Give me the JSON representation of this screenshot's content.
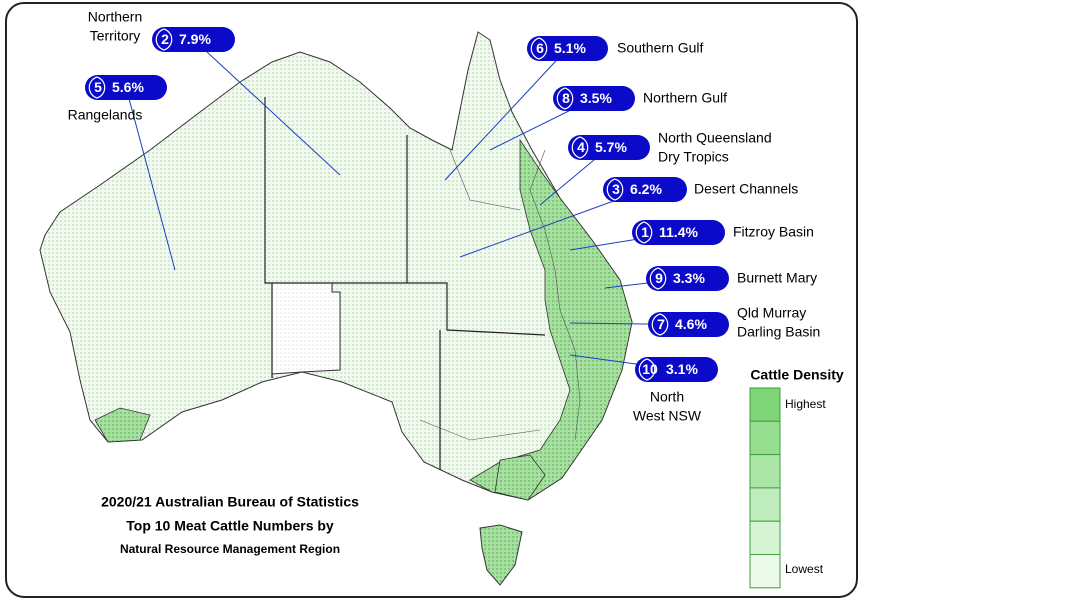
{
  "map": {
    "title_lines": [
      "2020/21 Australian Bureau of Statistics",
      "Top 10 Meat Cattle Numbers by",
      "Natural Resource Management Region"
    ],
    "regions": [
      {
        "rank": "2",
        "share": "7.9%",
        "name": [
          "Northern",
          "Territory"
        ]
      },
      {
        "rank": "5",
        "share": "5.6%",
        "name": [
          "Rangelands"
        ]
      },
      {
        "rank": "6",
        "share": "5.1%",
        "name": [
          "Southern Gulf"
        ]
      },
      {
        "rank": "8",
        "share": "3.5%",
        "name": [
          "Northern Gulf"
        ]
      },
      {
        "rank": "4",
        "share": "5.7%",
        "name": [
          "North Queensland",
          "Dry Tropics"
        ]
      },
      {
        "rank": "3",
        "share": "6.2%",
        "name": [
          "Desert Channels"
        ]
      },
      {
        "rank": "1",
        "share": "11.4%",
        "name": [
          "Fitzroy Basin"
        ]
      },
      {
        "rank": "9",
        "share": "3.3%",
        "name": [
          "Burnett Mary"
        ]
      },
      {
        "rank": "7",
        "share": "4.6%",
        "name": [
          "Qld Murray",
          "Darling Basin"
        ]
      },
      {
        "rank": "10",
        "share": "3.1%",
        "name": [
          "North",
          "West NSW"
        ]
      }
    ],
    "legend": {
      "title": "Cattle Density",
      "high": "Highest",
      "low": "Lowest"
    }
  }
}
